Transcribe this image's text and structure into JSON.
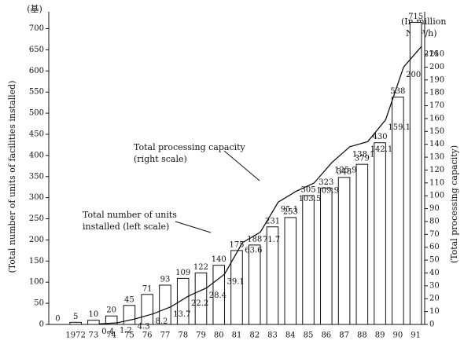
{
  "chart_data": {
    "type": "bar-line",
    "unit_left": "(基)",
    "unit_right": [
      "(In million",
      "Nm³/h)"
    ],
    "ylabel": "(Total number of units of facilities installed)",
    "y2label": "(Total processing capacity)",
    "annotations": [
      [
        "Total processing capacity",
        "(right scale)"
      ],
      [
        "Total number of units",
        "installed (left scale)"
      ]
    ],
    "categories": [
      null,
      "1972",
      "73",
      "74",
      "75",
      "76",
      "77",
      "78",
      "79",
      "80",
      "81",
      "82",
      "83",
      "84",
      "85",
      "86",
      "87",
      "88",
      "89",
      "90",
      "91"
    ],
    "series": [
      {
        "name": "Total number of units installed (left scale)",
        "type": "bar",
        "color": "#ffffff",
        "values": [
          0,
          5,
          10,
          20,
          45,
          71,
          93,
          109,
          122,
          140,
          175,
          188,
          231,
          253,
          305,
          323,
          348,
          379,
          430,
          538,
          715
        ]
      },
      {
        "name": "Total processing capacity (right scale)",
        "type": "line",
        "axis": "y2",
        "color": "#111111",
        "values": [
          null,
          null,
          0.4,
          1.2,
          4.3,
          8.2,
          13.7,
          22.2,
          28.4,
          39.1,
          63.6,
          71.7,
          95.1,
          103.5,
          109.9,
          125.9,
          138.1,
          142.1,
          159.1,
          200,
          216
        ]
      }
    ],
    "ylim": [
      0,
      740
    ],
    "yticks": [
      0,
      50,
      100,
      150,
      200,
      250,
      300,
      350,
      400,
      450,
      500,
      550,
      600,
      650,
      700
    ],
    "y2lim": [
      0,
      243
    ],
    "y2ticks": [
      0,
      10,
      20,
      30,
      40,
      50,
      60,
      70,
      80,
      90,
      100,
      110,
      120,
      130,
      140,
      150,
      160,
      170,
      180,
      190,
      200,
      210
    ],
    "grid": false
  }
}
